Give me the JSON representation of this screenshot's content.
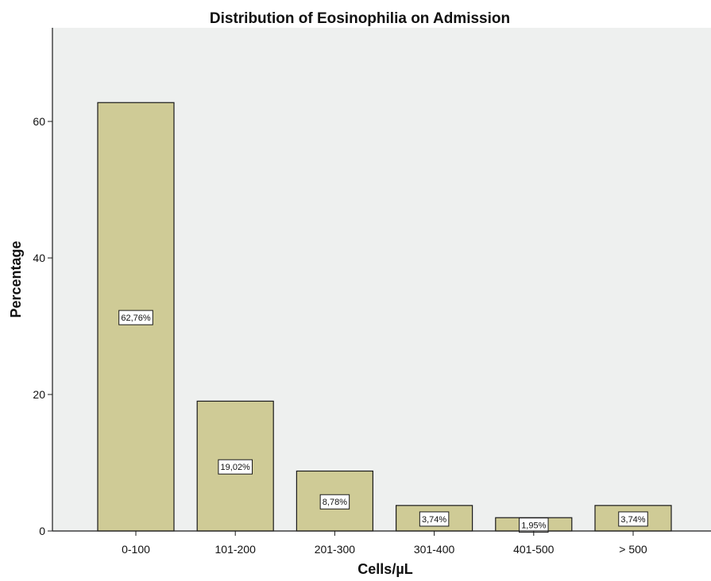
{
  "chart_data": {
    "type": "bar",
    "title": "Distribution of Eosinophilia on Admission",
    "xlabel": "Cells/µL",
    "ylabel": "Percentage",
    "categories": [
      "0-100",
      "101-200",
      "201-300",
      "301-400",
      "401-500",
      "> 500"
    ],
    "values": [
      62.76,
      19.02,
      8.78,
      3.74,
      1.95,
      3.74
    ],
    "data_labels": [
      "62,76%",
      "19,02%",
      "8,78%",
      "3,74%",
      "1,95%",
      "3,74%"
    ],
    "ylim": [
      0,
      74
    ],
    "yticks": [
      0,
      20,
      40,
      60
    ],
    "ytick_labels": [
      "0",
      "20",
      "40",
      "60"
    ],
    "grid": false,
    "legend": "none",
    "colors": {
      "bar_fill": "#cfcb96",
      "bar_stroke": "#1a1a1a",
      "plot_background": "#eef0ef",
      "axis": "#1a1a1a",
      "label_box_fill": "#ffffff"
    }
  }
}
